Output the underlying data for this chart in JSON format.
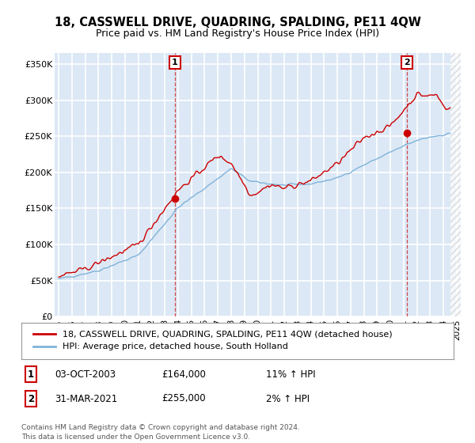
{
  "title": "18, CASSWELL DRIVE, QUADRING, SPALDING, PE11 4QW",
  "subtitle": "Price paid vs. HM Land Registry's House Price Index (HPI)",
  "title_fontsize": 10.5,
  "subtitle_fontsize": 9,
  "ylabel_ticks": [
    "£0",
    "£50K",
    "£100K",
    "£150K",
    "£200K",
    "£250K",
    "£300K",
    "£350K"
  ],
  "ytick_values": [
    0,
    50000,
    100000,
    150000,
    200000,
    250000,
    300000,
    350000
  ],
  "ylim": [
    0,
    365000
  ],
  "xlim_start": 1994.7,
  "xlim_end": 2025.3,
  "background_color": "#ffffff",
  "plot_bg_color": "#dce8f5",
  "grid_color": "#ffffff",
  "hpi_color": "#7fb3d9",
  "price_color": "#cc0000",
  "marker_color": "#cc0000",
  "legend_border_color": "#aaaaaa",
  "annotation_box_color": "#cc0000",
  "sale1_x": 2003.75,
  "sale1_y": 164000,
  "sale2_x": 2021.25,
  "sale2_y": 255000,
  "footer_text": "Contains HM Land Registry data © Crown copyright and database right 2024.\nThis data is licensed under the Open Government Licence v3.0.",
  "legend_label_red": "18, CASSWELL DRIVE, QUADRING, SPALDING, PE11 4QW (detached house)",
  "legend_label_blue": "HPI: Average price, detached house, South Holland",
  "table_row1": [
    "1",
    "03-OCT-2003",
    "£164,000",
    "11% ↑ HPI"
  ],
  "table_row2": [
    "2",
    "31-MAR-2021",
    "£255,000",
    "2% ↑ HPI"
  ],
  "hatch_start": 2024.5
}
